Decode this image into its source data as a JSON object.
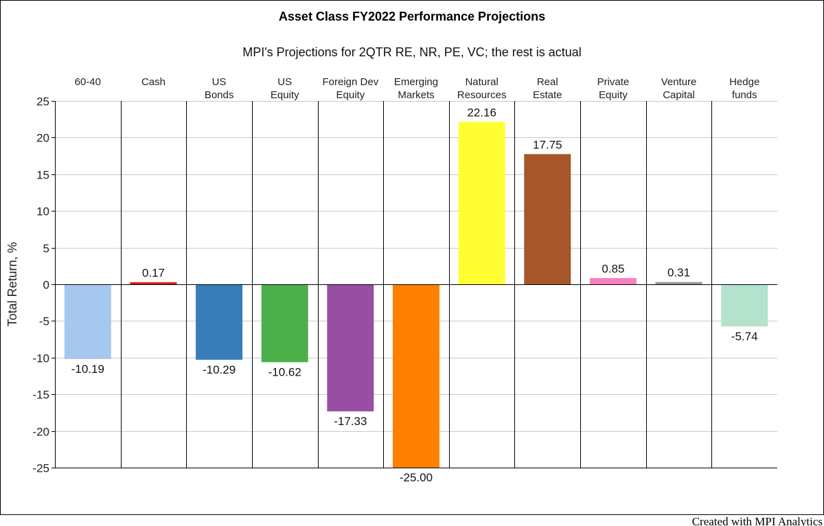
{
  "chart_data": {
    "type": "bar",
    "title": "Asset Class FY2022 Performance Projections",
    "subtitle": "MPI's Projections for 2QTR RE, NR, PE, VC; the rest is actual",
    "ylabel": "Total Return, %",
    "ylim": [
      -25,
      25
    ],
    "yticks": [
      25,
      20,
      15,
      10,
      5,
      0,
      -5,
      -10,
      -15,
      -20,
      -25
    ],
    "ytick_labels": [
      "25",
      "20",
      "15",
      "10",
      "5",
      "0",
      "-5",
      "-10",
      "-15",
      "-20",
      "-25"
    ],
    "grid": true,
    "categories": [
      {
        "line1": "60-40",
        "line2": ""
      },
      {
        "line1": "Cash",
        "line2": ""
      },
      {
        "line1": "US",
        "line2": "Bonds"
      },
      {
        "line1": "US",
        "line2": "Equity"
      },
      {
        "line1": "Foreign Dev",
        "line2": "Equity"
      },
      {
        "line1": "Emerging",
        "line2": "Markets"
      },
      {
        "line1": "Natural",
        "line2": "Resources"
      },
      {
        "line1": "Real",
        "line2": "Estate"
      },
      {
        "line1": "Private",
        "line2": "Equity"
      },
      {
        "line1": "Venture",
        "line2": "Capital"
      },
      {
        "line1": "Hedge",
        "line2": "funds"
      }
    ],
    "values": [
      -10.19,
      0.17,
      -10.29,
      -10.62,
      -17.33,
      -25.0,
      22.16,
      17.75,
      0.85,
      0.31,
      -5.74
    ],
    "value_labels": [
      "-10.19",
      "0.17",
      "-10.29",
      "-10.62",
      "-17.33",
      "-25.00",
      "22.16",
      "17.75",
      "0.85",
      "0.31",
      "-5.74"
    ],
    "colors": [
      "#a6c8ee",
      "#e41a1c",
      "#377eb8",
      "#4daf4a",
      "#984ea3",
      "#ff7f00",
      "#ffff33",
      "#a65628",
      "#f781bf",
      "#999999",
      "#b3e2cd"
    ]
  },
  "footer": {
    "credit": "Created with MPI Analytics"
  }
}
